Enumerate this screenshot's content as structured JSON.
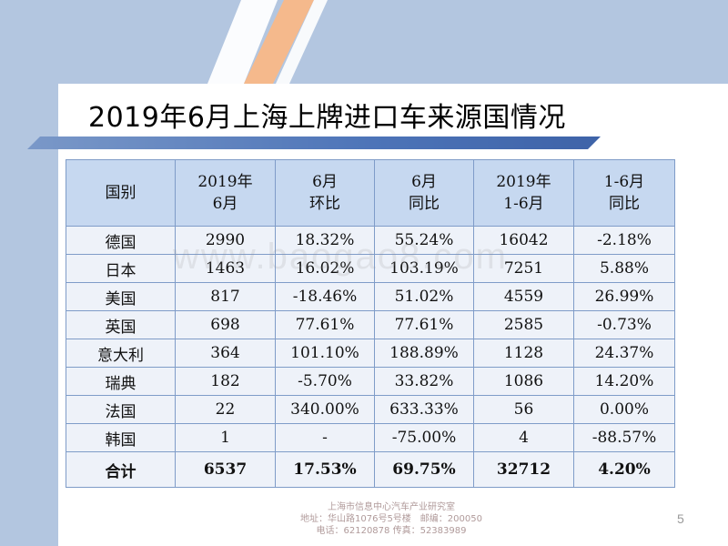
{
  "slide": {
    "title": "2019年6月上海上牌进口车来源国情况",
    "watermark": "www.baogao8.com",
    "page_number": "5"
  },
  "table": {
    "headers": [
      [
        "国别"
      ],
      [
        "2019年",
        "6月"
      ],
      [
        "6月",
        "环比"
      ],
      [
        "6月",
        "同比"
      ],
      [
        "2019年",
        "1-6月"
      ],
      [
        "1-6月",
        "同比"
      ]
    ],
    "rows": [
      [
        "德国",
        "2990",
        "18.32%",
        "55.24%",
        "16042",
        "-2.18%"
      ],
      [
        "日本",
        "1463",
        "16.02%",
        "103.19%",
        "7251",
        "5.88%"
      ],
      [
        "美国",
        "817",
        "-18.46%",
        "51.02%",
        "4559",
        "26.99%"
      ],
      [
        "英国",
        "698",
        "77.61%",
        "77.61%",
        "2585",
        "-0.73%"
      ],
      [
        "意大利",
        "364",
        "101.10%",
        "188.89%",
        "1128",
        "24.37%"
      ],
      [
        "瑞典",
        "182",
        "-5.70%",
        "33.82%",
        "1086",
        "14.20%"
      ],
      [
        "法国",
        "22",
        "340.00%",
        "633.33%",
        "56",
        "0.00%"
      ],
      [
        "韩国",
        "1",
        "-",
        "-75.00%",
        "4",
        "-88.57%"
      ]
    ],
    "total": [
      "合计",
      "6537",
      "17.53%",
      "69.75%",
      "32712",
      "4.20%"
    ]
  },
  "footer": {
    "line1": "上海市信息中心汽车产业研究室",
    "line2": "地址：华山路1076号5号楼　邮编：200050",
    "line3": "电话：62120878  传真：52383989"
  },
  "colors": {
    "background_band": "#b3c6e0",
    "header_fill": "#c6d8f0",
    "row_fill": "#eef2f9",
    "border": "#7f9cc8",
    "accent_stripe": "#f5b98c"
  }
}
